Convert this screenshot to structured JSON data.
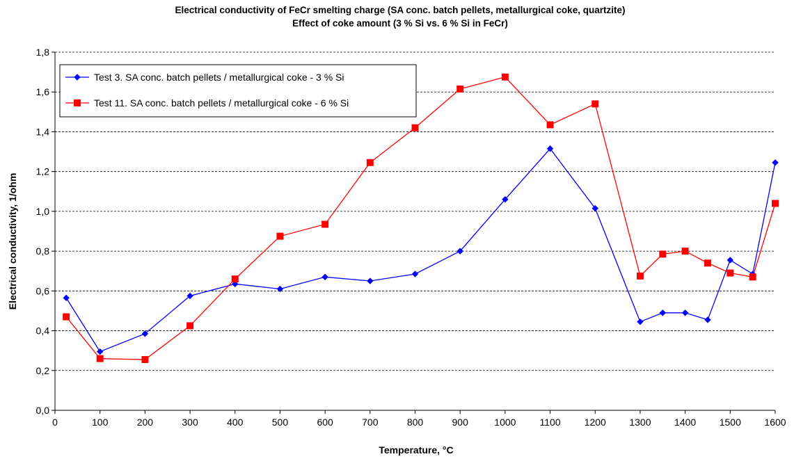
{
  "chart_data": {
    "type": "line",
    "title": "Electrical conductivity of FeCr smelting charge (SA conc. batch pellets, metallurgical coke, quartzite)",
    "subtitle": "Effect of coke amount (3 % Si vs. 6 % Si in FeCr)",
    "xlabel": "Temperature, °C",
    "ylabel": "Electrical conductivity, 1/ohm",
    "xlim": [
      0,
      1600
    ],
    "ylim": [
      0,
      1.8
    ],
    "x_ticks": [
      "0",
      "100",
      "200",
      "300",
      "400",
      "500",
      "600",
      "700",
      "800",
      "900",
      "1000",
      "1100",
      "1200",
      "1300",
      "1400",
      "1500",
      "1600"
    ],
    "y_ticks": [
      "0,0",
      "0,2",
      "0,4",
      "0,6",
      "0,8",
      "1,0",
      "1,2",
      "1,4",
      "1,6",
      "1,8"
    ],
    "grid": "horizontal",
    "legend_position": "top-left",
    "series": [
      {
        "name": "Test 3. SA conc. batch pellets / metallurgical coke - 3 % Si",
        "color": "#0000ff",
        "marker": "diamond",
        "x": [
          25,
          100,
          200,
          300,
          400,
          500,
          600,
          700,
          800,
          900,
          1000,
          1100,
          1200,
          1300,
          1350,
          1400,
          1450,
          1500,
          1550,
          1600
        ],
        "y": [
          0.565,
          0.295,
          0.385,
          0.575,
          0.635,
          0.61,
          0.67,
          0.65,
          0.685,
          0.8,
          1.06,
          1.315,
          1.015,
          0.445,
          0.49,
          0.49,
          0.455,
          0.755,
          0.685,
          1.245
        ]
      },
      {
        "name": "Test 11. SA conc. batch pellets / metallurgical coke - 6 % Si",
        "color": "#ff0000",
        "marker": "square",
        "x": [
          25,
          100,
          200,
          300,
          400,
          500,
          600,
          700,
          800,
          900,
          1000,
          1100,
          1200,
          1300,
          1350,
          1400,
          1450,
          1500,
          1550,
          1600
        ],
        "y": [
          0.47,
          0.26,
          0.255,
          0.425,
          0.66,
          0.875,
          0.935,
          1.245,
          1.42,
          1.615,
          1.675,
          1.435,
          1.54,
          0.675,
          0.785,
          0.8,
          0.74,
          0.69,
          0.67,
          1.04
        ]
      }
    ]
  }
}
